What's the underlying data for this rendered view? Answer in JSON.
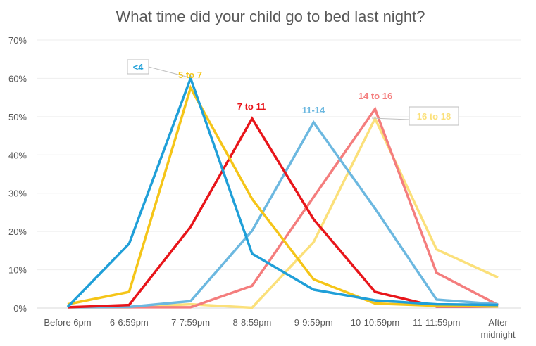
{
  "chart_data": {
    "type": "line",
    "title": "What time did your child go to bed last night?",
    "xlabel": "",
    "ylabel": "",
    "ylim": [
      0,
      70
    ],
    "y_ticks": [
      "0%",
      "10%",
      "20%",
      "30%",
      "40%",
      "50%",
      "60%",
      "70%"
    ],
    "grid": true,
    "legend": "none (series labeled directly on lines)",
    "categories": [
      "Before 6pm",
      "6-6:59pm",
      "7-7:59pm",
      "8-8:59pm",
      "9-9:59pm",
      "10-10:59pm",
      "11-11:59pm",
      "After midnight"
    ],
    "series": [
      {
        "name": "<4",
        "color": "#1f9fd8",
        "values": [
          0.3,
          16.8,
          60.0,
          14.2,
          4.8,
          2.0,
          1.0,
          0.8
        ]
      },
      {
        "name": "5 to 7",
        "color": "#f5c518",
        "values": [
          1.0,
          4.2,
          57.5,
          28.5,
          7.5,
          1.2,
          0.6,
          0.4
        ]
      },
      {
        "name": "7 to 11",
        "color": "#e8151a",
        "values": [
          0.2,
          0.8,
          21.2,
          49.5,
          23.2,
          4.2,
          0.4,
          0.4
        ]
      },
      {
        "name": "11-14",
        "color": "#6cb8e0",
        "values": [
          0.2,
          0.3,
          1.8,
          20.2,
          48.5,
          26.0,
          2.2,
          1.0
        ]
      },
      {
        "name": "14 to 16",
        "color": "#f47d7d",
        "values": [
          0.2,
          0.2,
          0.2,
          5.8,
          29.0,
          52.0,
          9.2,
          0.8
        ]
      },
      {
        "name": "16 to 18",
        "color": "#fbe07a",
        "values": [
          0.2,
          0.2,
          1.0,
          0.1,
          17.2,
          49.5,
          15.3,
          8.0
        ]
      }
    ]
  }
}
